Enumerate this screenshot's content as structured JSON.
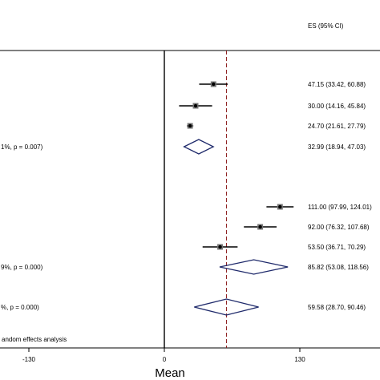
{
  "chart_data": {
    "type": "forest",
    "es_header": "ES (95% CI)",
    "xlabel": "Mean",
    "xlim": [
      -160,
      205
    ],
    "x_ticks": [
      {
        "value": -130,
        "label": "-130"
      },
      {
        "value": 0,
        "label": "0"
      },
      {
        "value": 130,
        "label": "130"
      }
    ],
    "overall_line": 59.58,
    "rows": [
      {
        "kind": "study",
        "es": 47.15,
        "lo": 33.42,
        "hi": 60.88,
        "text": "47.15 (33.42, 60.88)"
      },
      {
        "kind": "study",
        "es": 30.0,
        "lo": 14.16,
        "hi": 45.84,
        "text": "30.00 (14.16, 45.84)"
      },
      {
        "kind": "study",
        "es": 24.7,
        "lo": 21.61,
        "hi": 27.79,
        "text": "24.70 (21.61, 27.79)"
      },
      {
        "kind": "subtotal",
        "es": 32.99,
        "lo": 18.94,
        "hi": 47.03,
        "text": "32.99 (18.94, 47.03)",
        "left_text": "1%, p = 0.007)"
      },
      {
        "kind": "study",
        "es": 111.0,
        "lo": 97.99,
        "hi": 124.01,
        "text": "111.00 (97.99, 124.01)"
      },
      {
        "kind": "study",
        "es": 92.0,
        "lo": 76.32,
        "hi": 107.68,
        "text": "92.00 (76.32, 107.68)"
      },
      {
        "kind": "study",
        "es": 53.5,
        "lo": 36.71,
        "hi": 70.29,
        "text": "53.50 (36.71, 70.29)"
      },
      {
        "kind": "subtotal",
        "es": 85.82,
        "lo": 53.08,
        "hi": 118.56,
        "text": "85.82 (53.08, 118.56)",
        "left_text": "9%, p = 0.000)"
      },
      {
        "kind": "overall",
        "es": 59.58,
        "lo": 28.7,
        "hi": 90.46,
        "text": "59.58 (28.70, 90.46)",
        "left_text": "%, p = 0.000)"
      }
    ],
    "footnote": "andom effects analysis"
  },
  "colors": {
    "study_line": "#000000",
    "diamond": "#1f2a6b",
    "overall_line": "#8b1a1a",
    "axis": "#000000"
  }
}
